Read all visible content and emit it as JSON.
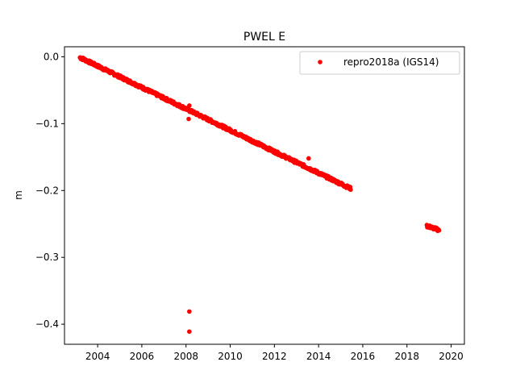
{
  "chart_data": {
    "type": "scatter",
    "title": "PWEL E",
    "xlabel": "",
    "ylabel": "m",
    "xlim": [
      2002.5,
      2020.6
    ],
    "ylim": [
      -0.43,
      0.015
    ],
    "xticks": [
      2004,
      2006,
      2008,
      2010,
      2012,
      2014,
      2016,
      2018,
      2020
    ],
    "yticks": [
      0.0,
      -0.1,
      -0.2,
      -0.3,
      -0.4
    ],
    "ytick_labels": [
      "0.0",
      "−0.1",
      "−0.2",
      "−0.3",
      "−0.4"
    ],
    "grid": false,
    "legend_position": "top-right",
    "series": [
      {
        "name": "repro2018a (IGS14)",
        "color": "#ff0000",
        "marker": "circle",
        "segments": [
          {
            "x_start": 2003.2,
            "x_end": 2015.45,
            "y_start": -0.001,
            "y_end": -0.197
          },
          {
            "x_start": 2018.9,
            "x_end": 2019.45,
            "y_start": -0.253,
            "y_end": -0.259
          }
        ],
        "outliers": [
          {
            "x": 2008.15,
            "y": -0.381
          },
          {
            "x": 2008.15,
            "y": -0.411
          },
          {
            "x": 2008.15,
            "y": -0.073
          },
          {
            "x": 2008.12,
            "y": -0.093
          },
          {
            "x": 2013.55,
            "y": -0.152
          }
        ]
      }
    ]
  }
}
